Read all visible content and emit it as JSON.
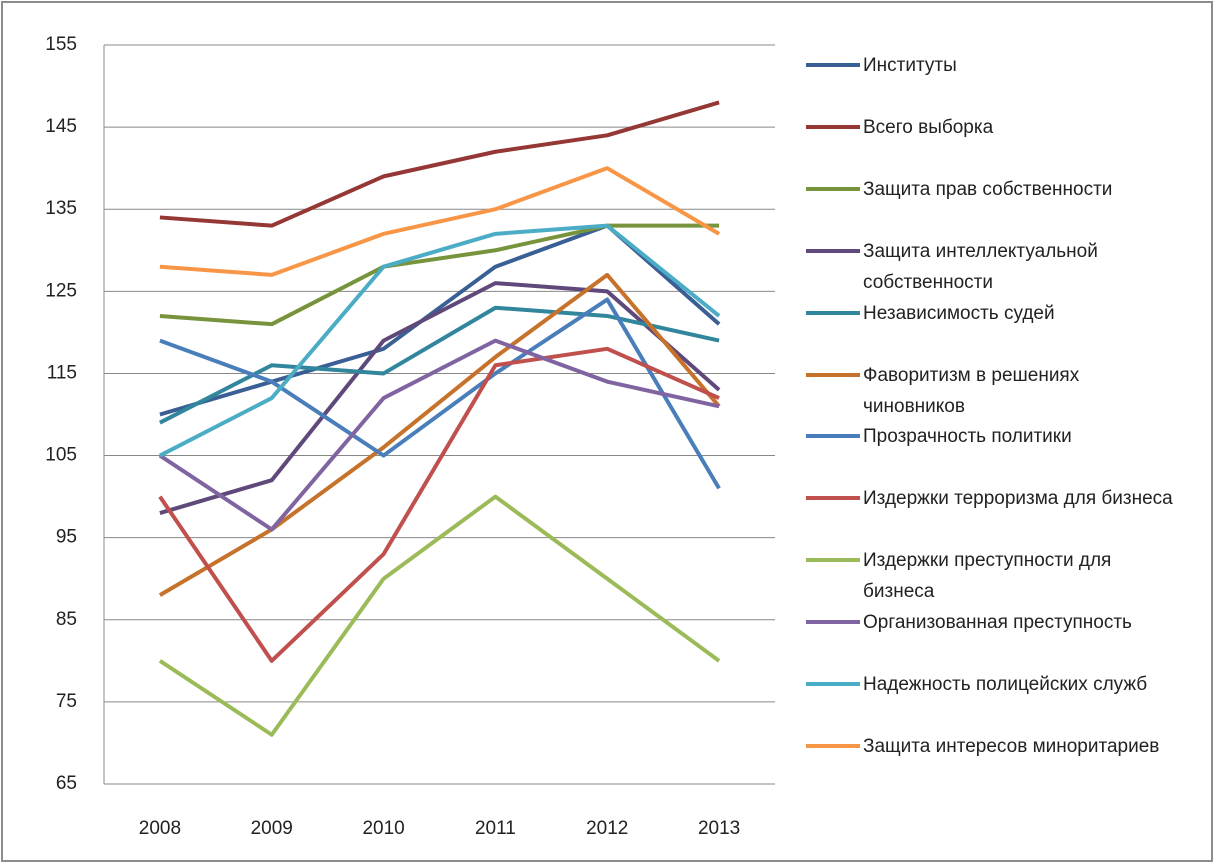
{
  "chart_data": {
    "type": "line",
    "categories": [
      "2008",
      "2009",
      "2010",
      "2011",
      "2012",
      "2013"
    ],
    "ylim": [
      65,
      155
    ],
    "yticks": [
      65,
      75,
      85,
      95,
      105,
      115,
      125,
      135,
      145,
      155
    ],
    "grid": true,
    "series": [
      {
        "name": "Институты",
        "color": "#3a5f94",
        "values": [
          110,
          114,
          118,
          128,
          133,
          121
        ]
      },
      {
        "name": "Всего выборка",
        "color": "#953735",
        "values": [
          134,
          133,
          139,
          142,
          144,
          148
        ]
      },
      {
        "name": "Защита прав собственности",
        "color": "#77933c",
        "values": [
          122,
          121,
          128,
          130,
          133,
          133
        ]
      },
      {
        "name": "Защита интеллектуальной собственности",
        "color": "#5f497a",
        "values": [
          98,
          102,
          119,
          126,
          125,
          113
        ]
      },
      {
        "name": "Независимость судей",
        "color": "#31859c",
        "values": [
          109,
          116,
          115,
          123,
          122,
          119
        ]
      },
      {
        "name": "Фаворитизм в решениях чиновников",
        "color": "#c6722a",
        "values": [
          88,
          96,
          106,
          117,
          127,
          111
        ]
      },
      {
        "name": "Прозрачность политики",
        "color": "#4a7ebb",
        "values": [
          119,
          114,
          105,
          115,
          124,
          101
        ]
      },
      {
        "name": "Издержки терроризма для бизнеса",
        "color": "#c0504d",
        "values": [
          100,
          80,
          93,
          116,
          118,
          112
        ]
      },
      {
        "name": "Издержки преступности для бизнеса",
        "color": "#9bbb59",
        "values": [
          80,
          71,
          90,
          100,
          90,
          80
        ]
      },
      {
        "name": "Организованная преступность",
        "color": "#8064a2",
        "values": [
          105,
          96,
          112,
          119,
          114,
          111
        ]
      },
      {
        "name": "Надежность полицейских служб",
        "color": "#4bacc6",
        "values": [
          105,
          112,
          128,
          132,
          133,
          122
        ]
      },
      {
        "name": "Защита интересов миноритариев",
        "color": "#f79646",
        "values": [
          128,
          127,
          132,
          135,
          140,
          132
        ]
      }
    ]
  }
}
